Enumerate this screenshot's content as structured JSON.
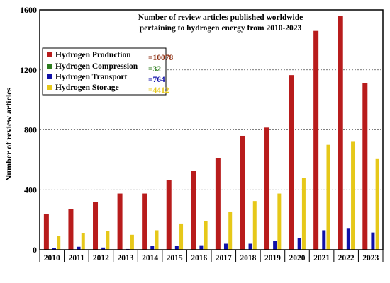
{
  "chart_data": {
    "type": "bar",
    "title": "Number of review articles published worldwide pertaining to hydrogen energy from 2010-2023",
    "title_lines": [
      "Number of review articles published worldwide",
      "pertaining to hydrogen energy from 2010-2023"
    ],
    "xlabel": "",
    "ylabel": "Number of review articles",
    "ylim": [
      0,
      1600
    ],
    "yticks": [
      0,
      400,
      800,
      1200,
      1600
    ],
    "grid": "horizontal dashed",
    "legend_position": "top-left",
    "categories": [
      "2010",
      "2011",
      "2012",
      "2013",
      "2014",
      "2015",
      "2016",
      "2017",
      "2018",
      "2019",
      "2020",
      "2021",
      "2022",
      "2023"
    ],
    "series": [
      {
        "name": "Hydrogen Production",
        "total_label": "=10078",
        "color": "#b81c1c",
        "label_color": "#8b2a0c",
        "values": [
          240,
          270,
          320,
          375,
          375,
          465,
          525,
          610,
          760,
          815,
          1165,
          1460,
          1560,
          1110
        ]
      },
      {
        "name": "Hydrogen Compression",
        "total_label": "=32",
        "color": "#2e7d1f",
        "label_color": "#2e7d1f",
        "values": [
          3,
          2,
          2,
          1,
          2,
          3,
          3,
          2,
          3,
          2,
          3,
          2,
          2,
          2
        ]
      },
      {
        "name": "Hydrogen Transport",
        "total_label": "=764",
        "color": "#1010a8",
        "label_color": "#1010a8",
        "values": [
          10,
          20,
          15,
          5,
          25,
          25,
          30,
          40,
          40,
          60,
          80,
          130,
          145,
          115
        ]
      },
      {
        "name": "Hydrogen Storage",
        "total_label": "=4412",
        "color": "#e6c819",
        "label_color": "#e6c819",
        "values": [
          90,
          110,
          125,
          100,
          130,
          175,
          190,
          255,
          325,
          375,
          480,
          700,
          720,
          605
        ]
      }
    ]
  }
}
